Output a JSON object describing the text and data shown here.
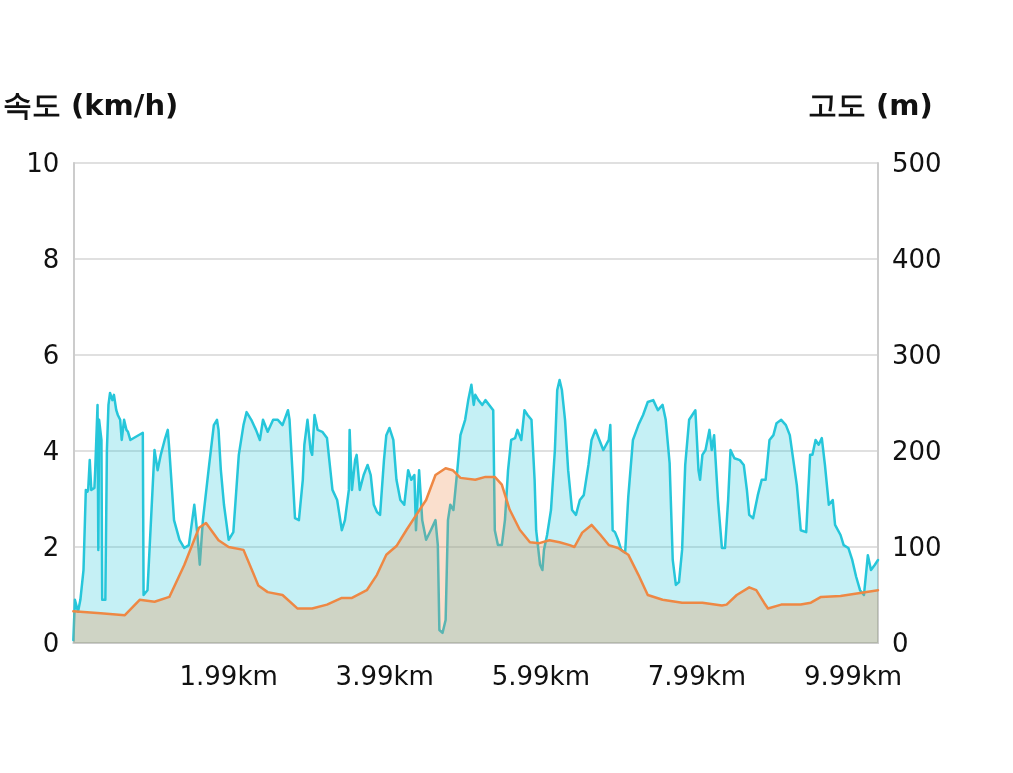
{
  "chart_data": {
    "type": "area",
    "ylabel": "속도 (km/h)",
    "y2label": "고도 (m)",
    "xlim": [
      0,
      10.31
    ],
    "xticks": [
      {
        "value": 1.99,
        "label": "1.99km"
      },
      {
        "value": 3.99,
        "label": "3.99km"
      },
      {
        "value": 5.99,
        "label": "5.99km"
      },
      {
        "value": 7.99,
        "label": "7.99km"
      },
      {
        "value": 9.99,
        "label": "9.99km"
      }
    ],
    "ylim": [
      0,
      10
    ],
    "yticks": [
      0,
      2,
      4,
      6,
      8,
      10
    ],
    "y2lim": [
      0,
      500
    ],
    "y2ticks": [
      0,
      100,
      200,
      300,
      400,
      500
    ],
    "grid": "y",
    "marker": "none",
    "line_style": "solid",
    "series": [
      {
        "color": "#26c6da",
        "x": [
          0,
          0.02,
          0.06,
          0.09,
          0.13,
          0.16,
          0.18,
          0.19,
          0.21,
          0.23,
          0.27,
          0.28,
          0.31,
          0.32,
          0.33,
          0.36,
          0.37,
          0.41,
          0.43,
          0.45,
          0.47,
          0.5,
          0.52,
          0.55,
          0.57,
          0.6,
          0.62,
          0.65,
          0.68,
          0.7,
          0.73,
          0.89,
          0.9,
          0.95,
          1.04,
          1.08,
          1.12,
          1.17,
          1.21,
          1.23,
          1.29,
          1.36,
          1.42,
          1.48,
          1.55,
          1.59,
          1.62,
          1.66,
          1.74,
          1.8,
          1.84,
          1.86,
          1.89,
          1.93,
          1.99,
          2.05,
          2.12,
          2.18,
          2.22,
          2.28,
          2.34,
          2.39,
          2.43,
          2.49,
          2.56,
          2.62,
          2.68,
          2.75,
          2.77,
          2.81,
          2.84,
          2.89,
          2.94,
          2.96,
          3.0,
          3.04,
          3.06,
          3.09,
          3.13,
          3.19,
          3.25,
          3.32,
          3.38,
          3.44,
          3.48,
          3.53,
          3.54,
          3.57,
          3.61,
          3.63,
          3.67,
          3.72,
          3.77,
          3.81,
          3.85,
          3.89,
          3.93,
          3.98,
          4.01,
          4.05,
          4.1,
          4.14,
          4.19,
          4.24,
          4.29,
          4.33,
          4.37,
          4.39,
          4.43,
          4.47,
          4.52,
          4.58,
          4.64,
          4.67,
          4.69,
          4.73,
          4.77,
          4.8,
          4.83,
          4.87,
          4.92,
          4.96,
          5.02,
          5.06,
          5.1,
          5.13,
          5.15,
          5.19,
          5.24,
          5.28,
          5.38,
          5.4,
          5.44,
          5.49,
          5.53,
          5.57,
          5.61,
          5.66,
          5.69,
          5.74,
          5.78,
          5.82,
          5.87,
          5.91,
          5.93,
          5.98,
          6.01,
          6.03,
          6.07,
          6.12,
          6.17,
          6.2,
          6.23,
          6.26,
          6.3,
          6.34,
          6.39,
          6.44,
          6.49,
          6.54,
          6.6,
          6.64,
          6.69,
          6.74,
          6.79,
          6.86,
          6.88,
          6.91,
          6.94,
          6.98,
          7.02,
          7.07,
          7.11,
          7.17,
          7.24,
          7.3,
          7.36,
          7.43,
          7.49,
          7.55,
          7.59,
          7.64,
          7.68,
          7.72,
          7.76,
          7.8,
          7.84,
          7.89,
          7.97,
          8.01,
          8.03,
          8.06,
          8.1,
          8.15,
          8.18,
          8.21,
          8.26,
          8.31,
          8.35,
          8.39,
          8.42,
          8.47,
          8.54,
          8.59,
          8.63,
          8.66,
          8.71,
          8.77,
          8.82,
          8.87,
          8.92,
          8.97,
          9.01,
          9.07,
          9.13,
          9.18,
          9.27,
          9.32,
          9.39,
          9.44,
          9.47,
          9.51,
          9.55,
          9.59,
          9.63,
          9.68,
          9.73,
          9.76,
          9.83,
          9.87,
          9.93,
          9.98,
          10.03,
          10.08,
          10.13,
          10.18,
          10.22,
          10.27,
          10.31
        ],
        "values": [
          0.06,
          0.9,
          0.65,
          0.9,
          1.52,
          3.19,
          3.15,
          3.19,
          3.81,
          3.19,
          3.23,
          3.6,
          4.96,
          1.94,
          4.65,
          4.23,
          0.9,
          0.9,
          4.02,
          4.96,
          5.21,
          5.06,
          5.17,
          4.85,
          4.75,
          4.65,
          4.23,
          4.65,
          4.44,
          4.4,
          4.23,
          4.38,
          1.0,
          1.1,
          4.02,
          3.6,
          3.92,
          4.23,
          4.44,
          4.02,
          2.56,
          2.15,
          1.98,
          2.04,
          2.88,
          2.25,
          1.63,
          2.56,
          3.71,
          4.54,
          4.65,
          4.44,
          3.6,
          2.88,
          2.15,
          2.31,
          3.92,
          4.54,
          4.81,
          4.65,
          4.44,
          4.23,
          4.65,
          4.4,
          4.65,
          4.65,
          4.54,
          4.85,
          4.65,
          3.5,
          2.6,
          2.56,
          3.4,
          4.13,
          4.65,
          4.02,
          3.92,
          4.75,
          4.44,
          4.4,
          4.27,
          3.19,
          2.98,
          2.35,
          2.56,
          3.19,
          4.44,
          3.19,
          3.81,
          3.92,
          3.19,
          3.5,
          3.71,
          3.5,
          2.88,
          2.73,
          2.67,
          3.81,
          4.33,
          4.48,
          4.23,
          3.4,
          2.98,
          2.88,
          3.6,
          3.4,
          3.5,
          2.35,
          3.6,
          2.56,
          2.15,
          2.35,
          2.56,
          2.04,
          0.27,
          0.21,
          0.48,
          2.56,
          2.88,
          2.77,
          3.6,
          4.33,
          4.65,
          5.06,
          5.38,
          4.96,
          5.17,
          5.06,
          4.96,
          5.06,
          4.85,
          2.35,
          2.04,
          2.04,
          2.56,
          3.6,
          4.23,
          4.27,
          4.44,
          4.23,
          4.85,
          4.75,
          4.65,
          3.4,
          2.35,
          1.63,
          1.52,
          1.94,
          2.25,
          2.77,
          4.02,
          5.27,
          5.48,
          5.27,
          4.65,
          3.6,
          2.77,
          2.67,
          2.98,
          3.08,
          3.71,
          4.23,
          4.44,
          4.23,
          4.02,
          4.23,
          4.54,
          2.35,
          2.31,
          2.15,
          1.94,
          1.88,
          3.04,
          4.23,
          4.54,
          4.75,
          5.02,
          5.06,
          4.85,
          4.96,
          4.65,
          3.75,
          1.73,
          1.21,
          1.27,
          1.94,
          3.71,
          4.65,
          4.85,
          3.6,
          3.4,
          3.92,
          4.02,
          4.44,
          4.02,
          4.33,
          2.98,
          1.98,
          1.98,
          2.98,
          4.02,
          3.85,
          3.81,
          3.71,
          3.19,
          2.67,
          2.6,
          3.08,
          3.4,
          3.4,
          4.23,
          4.33,
          4.58,
          4.65,
          4.54,
          4.33,
          3.29,
          2.35,
          2.31,
          3.92,
          3.92,
          4.23,
          4.13,
          4.27,
          3.71,
          2.88,
          2.98,
          2.46,
          2.25,
          2.04,
          1.98,
          1.73,
          1.38,
          1.1,
          1.0,
          1.83,
          1.52,
          1.63,
          1.73
        ]
      },
      {
        "color": "#ee8844",
        "axis": "y2",
        "x": [
          0,
          0.35,
          0.66,
          0.85,
          1.04,
          1.23,
          1.42,
          1.61,
          1.7,
          1.86,
          1.99,
          2.18,
          2.37,
          2.49,
          2.68,
          2.87,
          3.06,
          3.25,
          3.44,
          3.57,
          3.76,
          3.89,
          4.01,
          4.14,
          4.27,
          4.39,
          4.52,
          4.64,
          4.77,
          4.86,
          4.96,
          5.15,
          5.28,
          5.4,
          5.49,
          5.59,
          5.72,
          5.85,
          5.97,
          6.1,
          6.23,
          6.36,
          6.42,
          6.52,
          6.64,
          6.75,
          6.86,
          6.98,
          7.11,
          7.24,
          7.36,
          7.55,
          7.8,
          8.06,
          8.31,
          8.37,
          8.5,
          8.66,
          8.75,
          8.85,
          8.9,
          9.07,
          9.32,
          9.45,
          9.58,
          9.83,
          10.08,
          10.31
        ],
        "values": [
          33,
          31,
          29,
          45,
          43,
          48,
          81,
          120,
          125,
          107,
          100,
          97,
          60,
          53,
          50,
          36,
          36,
          40,
          47,
          47,
          55,
          71,
          92,
          101,
          118,
          133,
          149,
          175,
          182,
          180,
          172,
          170,
          173,
          173,
          165,
          139,
          118,
          105,
          104,
          107,
          105,
          102,
          100,
          115,
          123,
          113,
          102,
          99,
          92,
          71,
          50,
          45,
          42,
          42,
          39,
          40,
          50,
          58,
          55,
          42,
          36,
          40,
          40,
          42,
          48,
          49,
          52,
          55
        ]
      }
    ]
  }
}
